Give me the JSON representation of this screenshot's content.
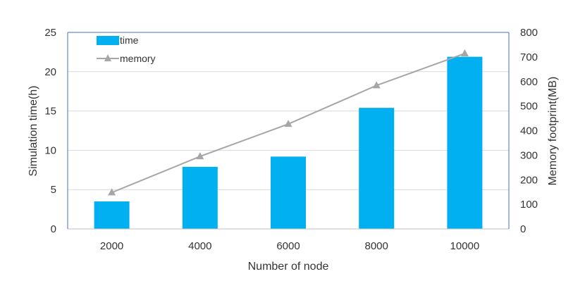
{
  "chart_data": {
    "type": "bar",
    "categories": [
      "2000",
      "4000",
      "6000",
      "8000",
      "10000"
    ],
    "series": [
      {
        "name": "time",
        "type": "bar",
        "axis": "left",
        "color": "#00b0f0",
        "values": [
          3.5,
          7.9,
          9.2,
          15.4,
          21.9
        ]
      },
      {
        "name": "memory",
        "type": "line",
        "marker": "triangle",
        "axis": "right",
        "color": "#a6a6a6",
        "values": [
          148,
          295,
          427,
          584,
          714
        ]
      }
    ],
    "title": "",
    "xlabel": "Number of node",
    "ylabel": "Simulation time(h)",
    "y2label": "Memory footprint(MB)",
    "ylim": [
      0,
      25
    ],
    "y2lim": [
      0,
      800
    ],
    "yticks": [
      "0",
      "5",
      "10",
      "15",
      "20",
      "25"
    ],
    "y2ticks": [
      "0",
      "100",
      "200",
      "300",
      "400",
      "500",
      "600",
      "700",
      "800"
    ],
    "grid": true,
    "legend_position": "top-left"
  }
}
